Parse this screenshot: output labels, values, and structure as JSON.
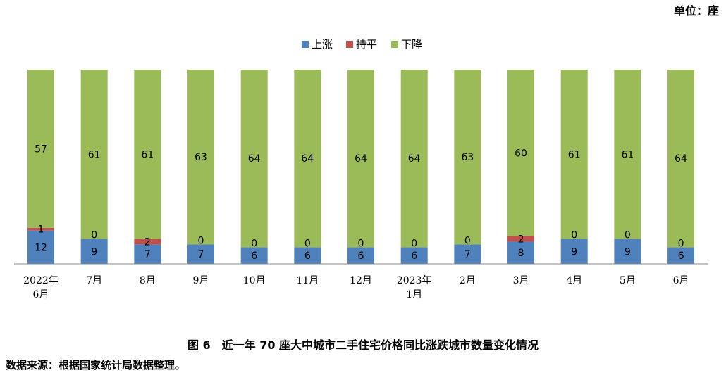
{
  "unit_label": "单位：座",
  "caption": "图 6　近一年 70 座大中城市二手住宅价格同比涨跌城市数量变化情况",
  "source": "数据来源：根据国家统计局数据整理。",
  "chart_data": {
    "type": "bar",
    "stacked": true,
    "categories": [
      [
        "2022年",
        "6月"
      ],
      [
        "7月"
      ],
      [
        "8月"
      ],
      [
        "9月"
      ],
      [
        "10月"
      ],
      [
        "11月"
      ],
      [
        "12月"
      ],
      [
        "2023年",
        "1月"
      ],
      [
        "2月"
      ],
      [
        "3月"
      ],
      [
        "4月"
      ],
      [
        "5月"
      ],
      [
        "6月"
      ]
    ],
    "series": [
      {
        "name": "上涨",
        "color": "#4f81bd",
        "values": [
          12,
          9,
          7,
          7,
          6,
          6,
          6,
          6,
          7,
          8,
          9,
          9,
          6
        ]
      },
      {
        "name": "持平",
        "color": "#c0504d",
        "values": [
          1,
          0,
          2,
          0,
          0,
          0,
          0,
          0,
          0,
          2,
          0,
          0,
          0
        ]
      },
      {
        "name": "下降",
        "color": "#9bbb59",
        "values": [
          57,
          61,
          61,
          63,
          64,
          64,
          64,
          64,
          63,
          60,
          61,
          61,
          64
        ]
      }
    ],
    "ylim": [
      0,
      70
    ],
    "legend_position": "top-center"
  }
}
